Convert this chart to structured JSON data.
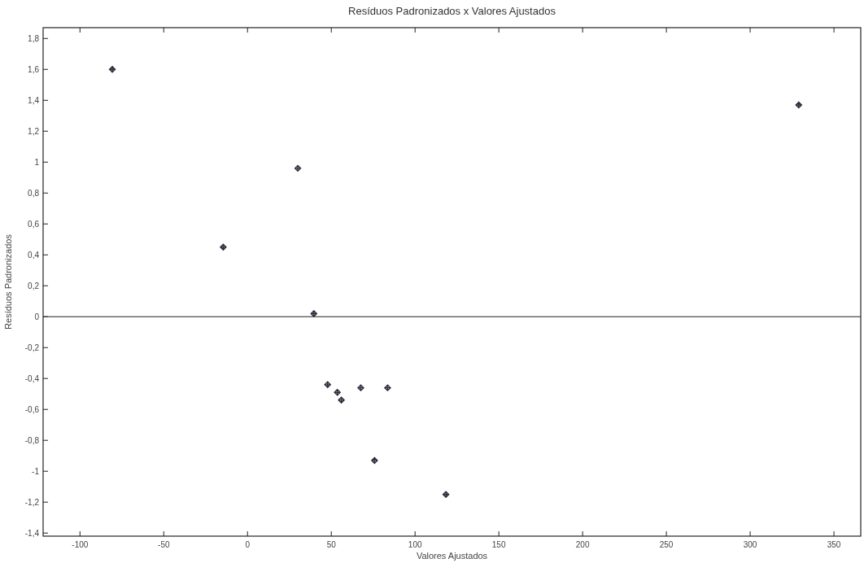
{
  "chart_data": {
    "type": "scatter",
    "title": "Resíduos Padronizados x Valores Ajustados",
    "xlabel": "Valores Ajustados",
    "ylabel": "Resíduos Padronizados",
    "x": [
      -80.7,
      -14.5,
      30,
      39.6,
      47.8,
      53.6,
      56,
      67.6,
      83.6,
      75.8,
      118.4,
      329
    ],
    "series": [
      {
        "color": "#2a2d3a",
        "values": [
          1.6,
          0.45,
          0.96,
          0.02,
          -0.44,
          -0.49,
          -0.54,
          -0.46,
          -0.46,
          -0.93,
          -1.15,
          1.37
        ]
      }
    ],
    "xlim": [
      -122,
      366
    ],
    "ylim": [
      -1.42,
      1.87
    ],
    "xticks": [
      {
        "value": -100,
        "label": "-100"
      },
      {
        "value": -50,
        "label": "-50"
      },
      0,
      50,
      100,
      150,
      200,
      250,
      300,
      350
    ],
    "yticks": [
      {
        "value": -1.4,
        "label": "-1,4"
      },
      {
        "value": -1.2,
        "label": "-1,2"
      },
      {
        "value": -1,
        "label": "-1"
      },
      {
        "value": -0.8,
        "label": "-0,8"
      },
      {
        "value": -0.6,
        "label": "-0,6"
      },
      {
        "value": -0.4,
        "label": "-0,4"
      },
      {
        "value": -0.2,
        "label": "-0,2"
      },
      0,
      {
        "value": 0.2,
        "label": "0,2"
      },
      {
        "value": 0.4,
        "label": "0,4"
      },
      {
        "value": 0.6,
        "label": "0,6"
      },
      {
        "value": 0.8,
        "label": "0,8"
      },
      1,
      {
        "value": 1.2,
        "label": "1,2"
      },
      {
        "value": 1.4,
        "label": "1,4"
      },
      {
        "value": 1.6,
        "label": "1,6"
      },
      {
        "value": 1.8,
        "label": "1,8"
      }
    ],
    "ref_lines": [
      {
        "axis": "y",
        "value": 0,
        "color": "#222222"
      }
    ],
    "marker": "cross",
    "grid": false
  }
}
